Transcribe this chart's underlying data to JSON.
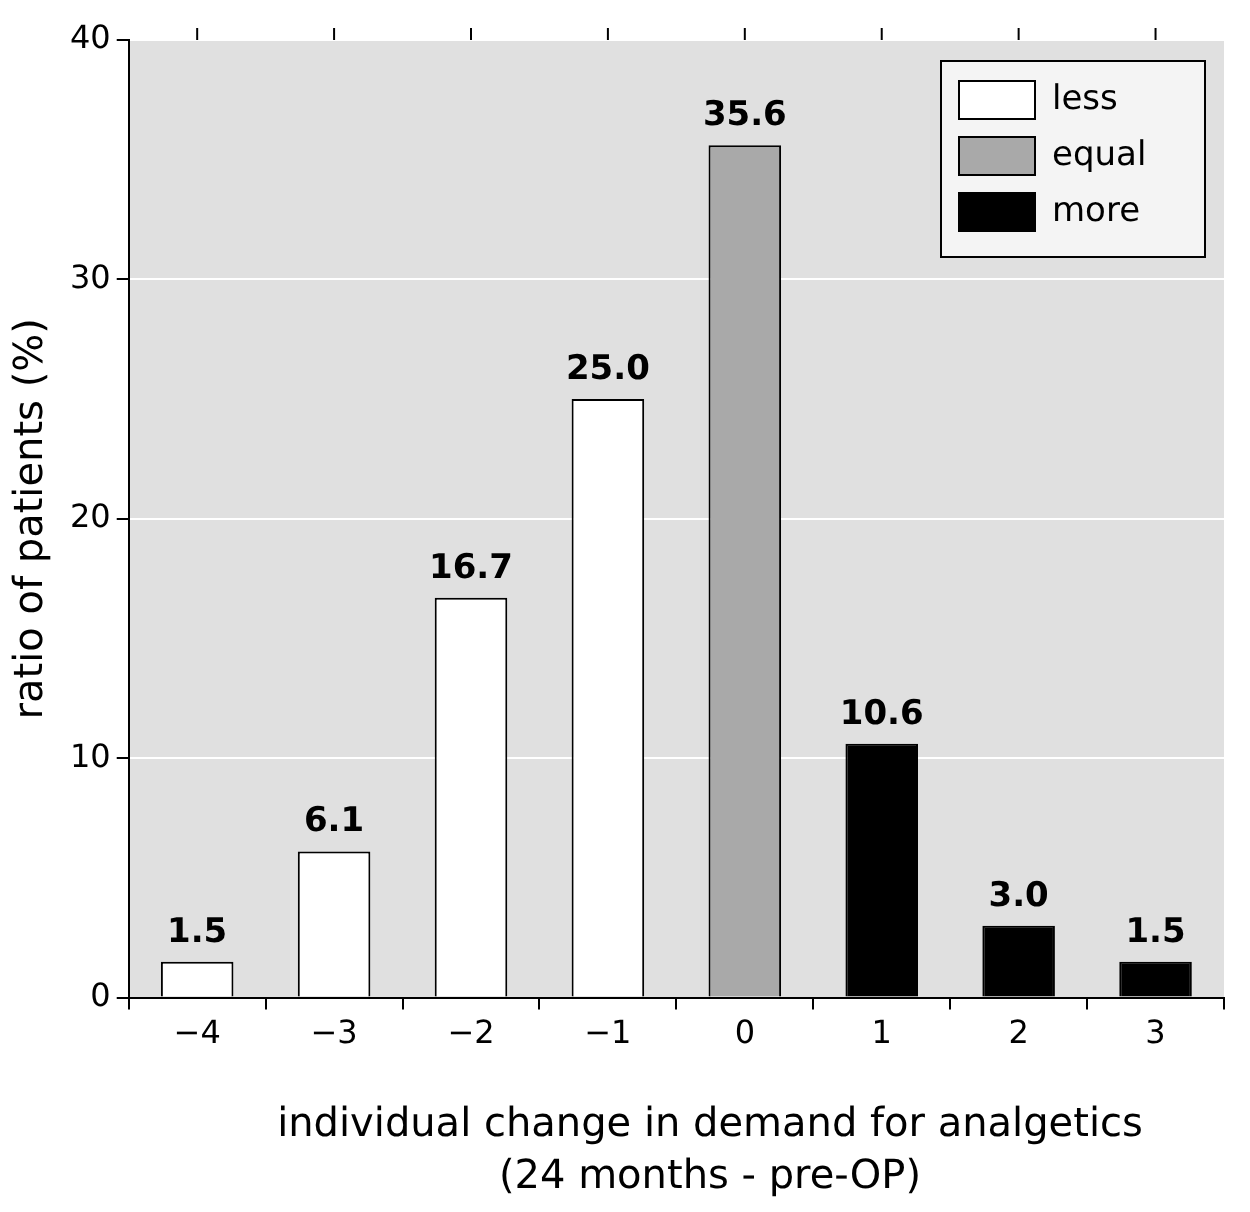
{
  "chart_data": {
    "type": "bar",
    "xlabel": "individual change in demand for analgetics (24 months - pre-OP)",
    "ylabel": "ratio of patients (%)",
    "categories": [
      "−4",
      "−3",
      "−2",
      "−1",
      "0",
      "1",
      "2",
      "3"
    ],
    "series": [
      {
        "name": "less",
        "color": "#ffffff",
        "values": [
          1.5,
          6.1,
          16.7,
          25.0,
          null,
          null,
          null,
          null
        ],
        "value_labels": [
          "1.5",
          "6.1",
          "16.7",
          "25.0",
          null,
          null,
          null,
          null
        ]
      },
      {
        "name": "equal",
        "color": "#a9a9a9",
        "values": [
          null,
          null,
          null,
          null,
          35.6,
          null,
          null,
          null
        ],
        "value_labels": [
          null,
          null,
          null,
          null,
          "35.6",
          null,
          null,
          null
        ]
      },
      {
        "name": "more",
        "color": "#000000",
        "values": [
          null,
          null,
          null,
          null,
          null,
          10.6,
          3.0,
          1.5
        ],
        "value_labels": [
          null,
          null,
          null,
          null,
          null,
          "10.6",
          "3.0",
          "1.5"
        ]
      }
    ],
    "ylim": [
      0,
      40
    ],
    "yticks": [
      0,
      10,
      20,
      30,
      40
    ],
    "grid": "y",
    "legend": "top right"
  }
}
